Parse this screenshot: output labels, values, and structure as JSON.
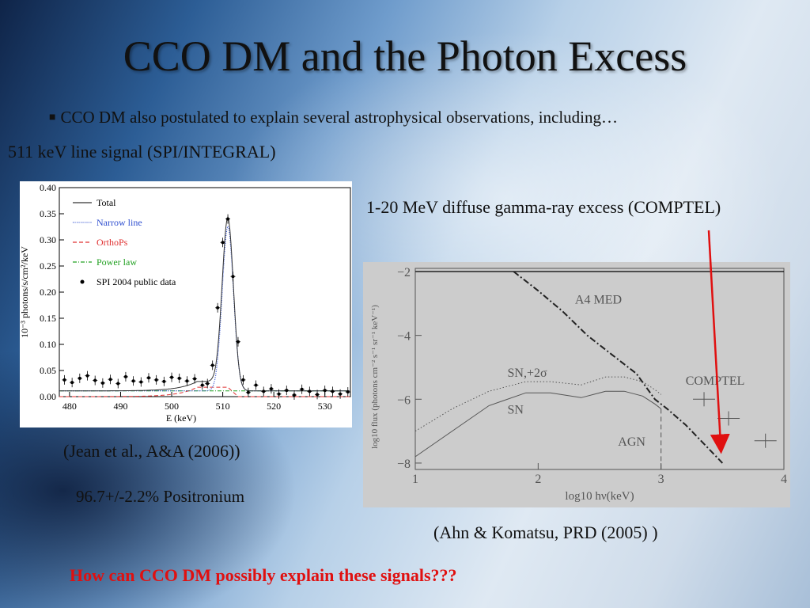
{
  "slide": {
    "title": "CCO DM and the Photon Excess",
    "bullet": "CCO DM also postulated to explain several astrophysical observations, including…",
    "left_heading": "511 keV line signal (SPI/INTEGRAL)",
    "right_heading": "1-20 MeV diffuse gamma-ray excess (COMPTEL)",
    "left_citation": "(Jean et al., A&A (2006))",
    "positronium": "96.7+/-2.2% Positronium",
    "right_citation": "(Ahn & Komatsu, PRD (2005) )",
    "question": "How can CCO DM possibly explain these signals???",
    "question_color": "#e01010",
    "arrow_color": "#e01010"
  },
  "chart_data": [
    {
      "type": "line",
      "xlabel": "E (keV)",
      "ylabel": "10⁻³ photons/s/cm²/keV",
      "xlim": [
        478,
        535
      ],
      "ylim": [
        0,
        0.4
      ],
      "xticks": [
        480,
        490,
        500,
        510,
        520,
        530
      ],
      "yticks": [
        0.0,
        0.05,
        0.1,
        0.15,
        0.2,
        0.25,
        0.3,
        0.35,
        0.4
      ],
      "ytick_labels": [
        "0.00",
        "0.05",
        "0.10",
        "0.15",
        "0.20",
        "0.25",
        "0.30",
        "0.35",
        "0.40"
      ],
      "legend": [
        "Total",
        "Narrow line",
        "OrthoPs",
        "Power law",
        "SPI 2004 public data"
      ],
      "legend_position": "top-left",
      "colors": {
        "Total": "#333333",
        "Narrow line": "#3050d0",
        "OrthoPs": "#e03030",
        "Power law": "#20a020",
        "data": "#000000"
      },
      "model": {
        "line_center": 511,
        "line_peak": 0.315,
        "line_sigma": 1.1,
        "ortho_level": 0.018,
        "power_level": 0.011
      },
      "data_points": [
        {
          "x": 479,
          "y": 0.032
        },
        {
          "x": 480.5,
          "y": 0.027
        },
        {
          "x": 482,
          "y": 0.035
        },
        {
          "x": 483.5,
          "y": 0.04
        },
        {
          "x": 485,
          "y": 0.031
        },
        {
          "x": 486.5,
          "y": 0.026
        },
        {
          "x": 488,
          "y": 0.033
        },
        {
          "x": 489.5,
          "y": 0.025
        },
        {
          "x": 491,
          "y": 0.038
        },
        {
          "x": 492.5,
          "y": 0.03
        },
        {
          "x": 494,
          "y": 0.028
        },
        {
          "x": 495.5,
          "y": 0.036
        },
        {
          "x": 497,
          "y": 0.032
        },
        {
          "x": 498.5,
          "y": 0.029
        },
        {
          "x": 500,
          "y": 0.037
        },
        {
          "x": 501.5,
          "y": 0.035
        },
        {
          "x": 503,
          "y": 0.03
        },
        {
          "x": 504.5,
          "y": 0.034
        },
        {
          "x": 506,
          "y": 0.022
        },
        {
          "x": 507,
          "y": 0.025
        },
        {
          "x": 508,
          "y": 0.06
        },
        {
          "x": 509,
          "y": 0.17
        },
        {
          "x": 510,
          "y": 0.295
        },
        {
          "x": 511,
          "y": 0.34
        },
        {
          "x": 512,
          "y": 0.23
        },
        {
          "x": 513,
          "y": 0.105
        },
        {
          "x": 514,
          "y": 0.032
        },
        {
          "x": 515,
          "y": 0.008
        },
        {
          "x": 516.5,
          "y": 0.022
        },
        {
          "x": 518,
          "y": 0.01
        },
        {
          "x": 519.5,
          "y": 0.015
        },
        {
          "x": 521,
          "y": 0.005
        },
        {
          "x": 522.5,
          "y": 0.012
        },
        {
          "x": 524,
          "y": 0.003
        },
        {
          "x": 525.5,
          "y": 0.014
        },
        {
          "x": 527,
          "y": 0.01
        },
        {
          "x": 528.5,
          "y": 0.004
        },
        {
          "x": 530,
          "y": 0.012
        },
        {
          "x": 531.5,
          "y": 0.01
        },
        {
          "x": 533,
          "y": 0.005
        },
        {
          "x": 534.5,
          "y": 0.009
        }
      ]
    },
    {
      "type": "line",
      "xlabel": "log10 hν(keV)",
      "ylabel": "log10 flux (photons cm⁻² s⁻¹ sr⁻¹ keV⁻¹)",
      "xlim": [
        1,
        4
      ],
      "ylim": [
        -8.2,
        -1.9
      ],
      "xticks": [
        1,
        2,
        3,
        4
      ],
      "yticks": [
        -2,
        -4,
        -6,
        -8
      ],
      "annotations": [
        "A4 MED",
        "SN,+2σ",
        "SN",
        "COMPTEL",
        "AGN"
      ],
      "series": [
        {
          "name": "SN",
          "style": "solid",
          "x": [
            1.0,
            1.3,
            1.6,
            1.9,
            2.1,
            2.35,
            2.55,
            2.7,
            2.85,
            2.95,
            3.0
          ],
          "y": [
            -7.8,
            -7.0,
            -6.2,
            -5.8,
            -5.8,
            -5.95,
            -5.75,
            -5.75,
            -5.9,
            -6.15,
            -6.3
          ]
        },
        {
          "name": "SN,+2σ",
          "style": "dotted",
          "x": [
            1.0,
            1.3,
            1.6,
            1.9,
            2.1,
            2.35,
            2.55,
            2.7,
            2.85,
            2.95,
            3.0
          ],
          "y": [
            -7.0,
            -6.3,
            -5.75,
            -5.45,
            -5.45,
            -5.55,
            -5.3,
            -5.3,
            -5.45,
            -5.7,
            -5.85
          ]
        },
        {
          "name": "A4 MED",
          "style": "dashdot",
          "x": [
            1.8,
            2.0,
            2.2,
            2.4,
            2.6,
            2.8,
            2.95,
            3.05,
            3.2,
            3.35,
            3.5
          ],
          "y": [
            -2.0,
            -2.6,
            -3.25,
            -4.0,
            -4.6,
            -5.2,
            -6.0,
            -6.3,
            -6.8,
            -7.4,
            -8.0
          ]
        },
        {
          "name": "AGN",
          "style": "dashed",
          "x": [
            3.0,
            3.0
          ],
          "y": [
            -6.3,
            -8.2
          ]
        }
      ],
      "comptel_points": [
        {
          "x": 3.35,
          "y": -6.0
        },
        {
          "x": 3.55,
          "y": -6.6
        },
        {
          "x": 3.85,
          "y": -7.3
        }
      ],
      "horizontal_line": -2.0
    }
  ]
}
